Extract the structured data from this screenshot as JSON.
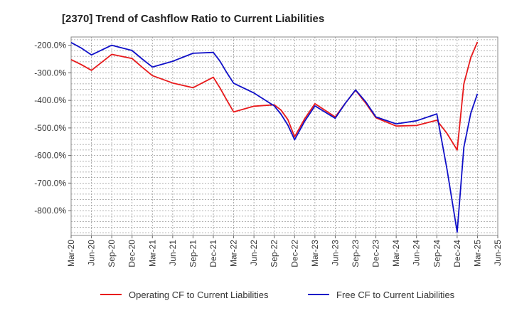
{
  "chart_data": {
    "type": "line",
    "title": "[2370]  Trend of Cashflow Ratio to Current Liabilities",
    "xlabel": "",
    "ylabel": "",
    "categories": [
      "Mar-20",
      "Jun-20",
      "Sep-20",
      "Dec-20",
      "Mar-21",
      "Jun-21",
      "Sep-21",
      "Dec-21",
      "Mar-22",
      "Jun-22",
      "Sep-22",
      "Dec-22",
      "Mar-23",
      "Jun-23",
      "Sep-23",
      "Dec-23",
      "Mar-24",
      "Jun-24",
      "Sep-24",
      "Dec-24",
      "Mar-25",
      "Jun-25"
    ],
    "y_tick_labels": [
      "-200.0%",
      "-300.0%",
      "-400.0%",
      "-500.0%",
      "-600.0%",
      "-700.0%",
      "-800.0%"
    ],
    "y_ticks": [
      -200,
      -300,
      -400,
      -500,
      -600,
      -700,
      -800
    ],
    "ylim": [
      -890,
      -170
    ],
    "grid": true,
    "legend_position": "bottom",
    "series": [
      {
        "name": "Operating CF to Current Liabilities",
        "color": "#e8191b",
        "points": [
          [
            0,
            -252
          ],
          [
            0.5,
            -270
          ],
          [
            1,
            -291
          ],
          [
            2,
            -233
          ],
          [
            3,
            -248
          ],
          [
            3.5,
            -280
          ],
          [
            4,
            -310
          ],
          [
            5,
            -337
          ],
          [
            6,
            -354
          ],
          [
            7,
            -316
          ],
          [
            7.33,
            -355
          ],
          [
            7.67,
            -400
          ],
          [
            8,
            -442
          ],
          [
            9,
            -421
          ],
          [
            10,
            -416
          ],
          [
            10.33,
            -435
          ],
          [
            10.67,
            -470
          ],
          [
            11,
            -532
          ],
          [
            11.5,
            -466
          ],
          [
            12,
            -412
          ],
          [
            13,
            -460
          ],
          [
            13.5,
            -410
          ],
          [
            14,
            -363
          ],
          [
            14.5,
            -410
          ],
          [
            15,
            -463
          ],
          [
            16,
            -493
          ],
          [
            17,
            -491
          ],
          [
            18,
            -472
          ],
          [
            18.5,
            -520
          ],
          [
            19,
            -580
          ],
          [
            19.33,
            -340
          ],
          [
            19.67,
            -245
          ],
          [
            20,
            -188
          ]
        ]
      },
      {
        "name": "Free CF to Current Liabilities",
        "color": "#1010c8",
        "points": [
          [
            0,
            -190
          ],
          [
            0.5,
            -210
          ],
          [
            1,
            -235
          ],
          [
            2,
            -200
          ],
          [
            3,
            -219
          ],
          [
            3.5,
            -250
          ],
          [
            4,
            -279
          ],
          [
            5,
            -258
          ],
          [
            6,
            -229
          ],
          [
            7,
            -226
          ],
          [
            7.33,
            -258
          ],
          [
            7.67,
            -300
          ],
          [
            8,
            -338
          ],
          [
            9,
            -373
          ],
          [
            10,
            -420
          ],
          [
            10.33,
            -450
          ],
          [
            10.67,
            -490
          ],
          [
            11,
            -543
          ],
          [
            11.5,
            -475
          ],
          [
            12,
            -420
          ],
          [
            13,
            -465
          ],
          [
            13.5,
            -410
          ],
          [
            14,
            -362
          ],
          [
            14.5,
            -405
          ],
          [
            15,
            -460
          ],
          [
            16,
            -485
          ],
          [
            17,
            -474
          ],
          [
            18,
            -449
          ],
          [
            18.5,
            -650
          ],
          [
            19,
            -878
          ],
          [
            19.33,
            -570
          ],
          [
            19.67,
            -447
          ],
          [
            20,
            -376
          ]
        ]
      }
    ]
  }
}
